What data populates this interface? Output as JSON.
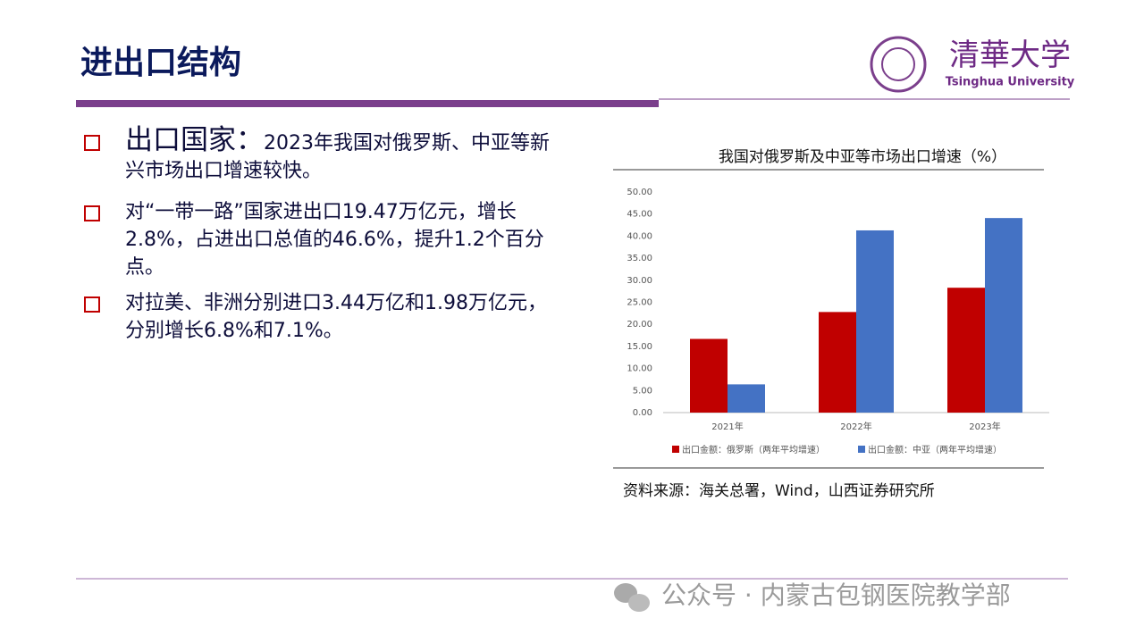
{
  "header": {
    "title": "进出口结构"
  },
  "logo": {
    "name": "清華大学",
    "english": "Tsinghua University"
  },
  "bullets": [
    {
      "heading": "出口国家：",
      "text": "2023年我国对俄罗斯、中亚等新兴市场出口增速较快。"
    },
    {
      "text": "对“一带一路”国家进出口19.47万亿元，增长2.8%，占进出口总值的46.6%，提升1.2个百分点。"
    },
    {
      "text": "对拉美、非洲分别进口3.44万亿和1.98万亿元，分别增长6.8%和7.1%。"
    }
  ],
  "chart_data": {
    "type": "bar",
    "title": "我国对俄罗斯及中亚等市场出口增速（%）",
    "categories": [
      "2021年",
      "2022年",
      "2023年"
    ],
    "series": [
      {
        "name": "出口金额：俄罗斯（两年平均增速）",
        "color": "#c00000",
        "values": [
          16.7,
          22.8,
          28.3
        ]
      },
      {
        "name": "出口金额：中亚（两年平均增速）",
        "color": "#4472c4",
        "values": [
          6.4,
          41.3,
          44.1
        ]
      }
    ],
    "ylim": [
      0,
      50
    ],
    "yticks": [
      {
        "value": 0,
        "label": "0.00"
      },
      {
        "value": 5,
        "label": "5.00"
      },
      {
        "value": 10,
        "label": "10.00"
      },
      {
        "value": 15,
        "label": "15.00"
      },
      {
        "value": 20,
        "label": "20.00"
      },
      {
        "value": 25,
        "label": "25.00"
      },
      {
        "value": 30,
        "label": "30.00"
      },
      {
        "value": 35,
        "label": "35.00"
      },
      {
        "value": 40,
        "label": "40.00"
      },
      {
        "value": 45,
        "label": "45.00"
      },
      {
        "value": 50,
        "label": "50.00"
      }
    ],
    "grid": false,
    "source": "资料来源：海关总署，Wind，山西证券研究所"
  },
  "footer": {
    "watermark": "公众号 · 内蒙古包钢医院教学部"
  }
}
